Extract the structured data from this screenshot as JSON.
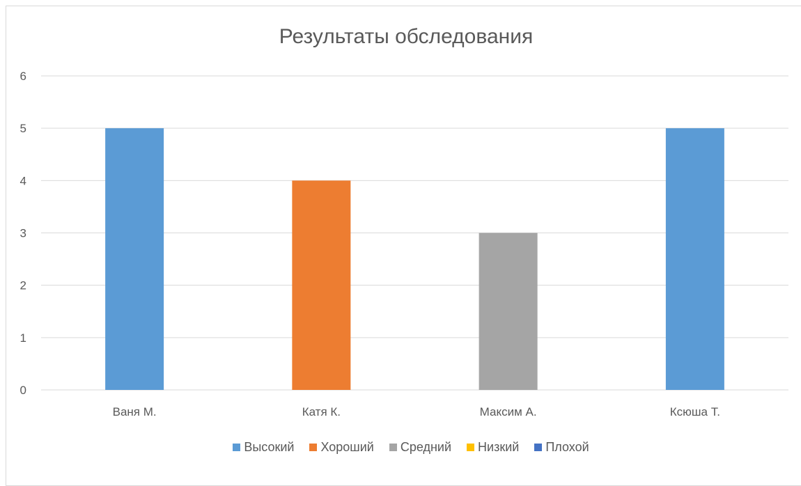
{
  "chart_data": {
    "type": "bar",
    "title": "Результаты обследования",
    "xlabel": "",
    "ylabel": "",
    "categories": [
      "Ваня М.",
      "Катя К.",
      "Максим А.",
      "Ксюша Т."
    ],
    "values": [
      5,
      4,
      3,
      5
    ],
    "bar_colors": [
      "#5B9BD5",
      "#ED7D31",
      "#A5A5A5",
      "#5B9BD5"
    ],
    "ylim": [
      0,
      6
    ],
    "yticks": [
      "0",
      "1",
      "2",
      "3",
      "4",
      "5",
      "6"
    ],
    "grid": true,
    "legend_position": "bottom",
    "legend": [
      {
        "label": "Высокий",
        "color": "#5B9BD5"
      },
      {
        "label": "Хороший",
        "color": "#ED7D31"
      },
      {
        "label": "Средний",
        "color": "#A5A5A5"
      },
      {
        "label": "Низкий",
        "color": "#FFC000"
      },
      {
        "label": "Плохой",
        "color": "#4472C4"
      }
    ]
  }
}
